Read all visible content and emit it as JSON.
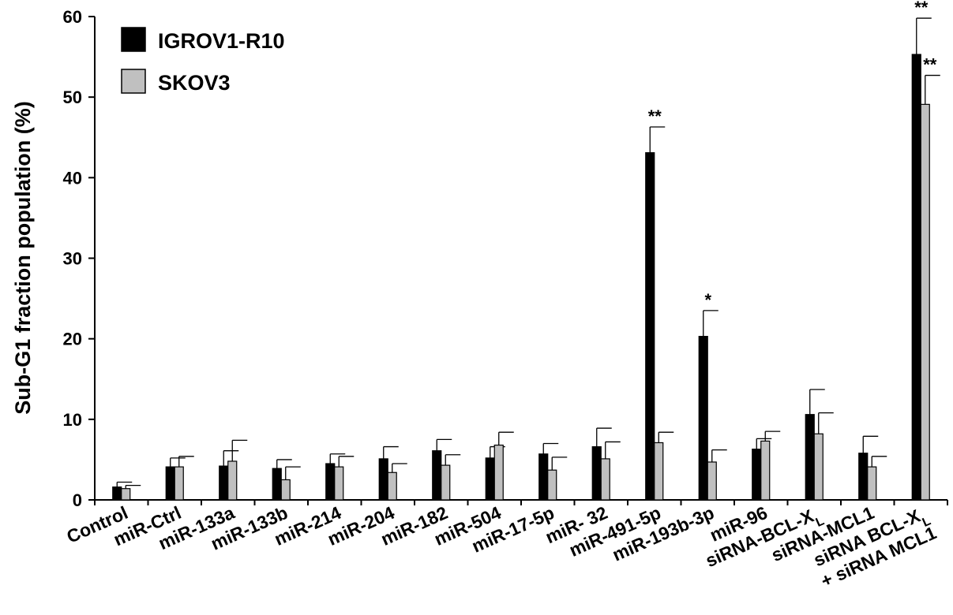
{
  "chart_data": {
    "type": "bar",
    "ylabel": "Sub-G1 fraction population (%)",
    "ylim": [
      0,
      60
    ],
    "yticks": [
      "0",
      "10",
      "20",
      "30",
      "40",
      "50",
      "60"
    ],
    "legend_position": "top-left",
    "categories": [
      "Control",
      "miR-Ctrl",
      "miR-133a",
      "miR-133b",
      "miR-214",
      "miR-204",
      "miR-182",
      "miR-504",
      "miR-17-5p",
      "miR- 32",
      "miR-491-5p",
      "miR-193b-3p",
      "miR-96",
      "siRNA-BCL-X",
      "siRNA-MCL1",
      "siRNA BCL-X"
    ],
    "category_subscripts": [
      "",
      "",
      "",
      "",
      "",
      "",
      "",
      "",
      "",
      "",
      "",
      "",
      "",
      "L",
      "",
      "L"
    ],
    "category_second_line": [
      "",
      "",
      "",
      "",
      "",
      "",
      "",
      "",
      "",
      "",
      "",
      "",
      "",
      "",
      "",
      "+ siRNA MCL1"
    ],
    "series": [
      {
        "name": "IGROV1-R10",
        "color": "#000000",
        "values": [
          1.6,
          4.1,
          4.2,
          3.9,
          4.5,
          5.1,
          6.1,
          5.2,
          5.7,
          6.6,
          43.1,
          20.3,
          6.3,
          10.6,
          5.8,
          55.3
        ],
        "errors": [
          0.6,
          1.1,
          1.9,
          1.1,
          1.2,
          1.5,
          1.4,
          1.4,
          1.3,
          2.3,
          3.2,
          3.2,
          1.3,
          3.1,
          2.1,
          4.5
        ],
        "significance": [
          "",
          "",
          "",
          "",
          "",
          "",
          "",
          "",
          "",
          "",
          "**",
          "*",
          "",
          "",
          "",
          "**"
        ]
      },
      {
        "name": "SKOV3",
        "color": "#c0c0c0",
        "values": [
          1.4,
          4.1,
          4.8,
          2.5,
          4.1,
          3.4,
          4.3,
          6.8,
          3.7,
          5.1,
          7.1,
          4.7,
          7.3,
          8.2,
          4.1,
          49.1
        ],
        "errors": [
          0.4,
          1.3,
          2.6,
          1.6,
          1.3,
          1.1,
          1.3,
          1.6,
          1.6,
          2.1,
          1.3,
          1.5,
          1.2,
          2.6,
          1.3,
          3.6
        ],
        "significance": [
          "",
          "",
          "",
          "",
          "",
          "",
          "",
          "",
          "",
          "",
          "",
          "",
          "",
          "",
          "",
          "**"
        ]
      }
    ]
  }
}
